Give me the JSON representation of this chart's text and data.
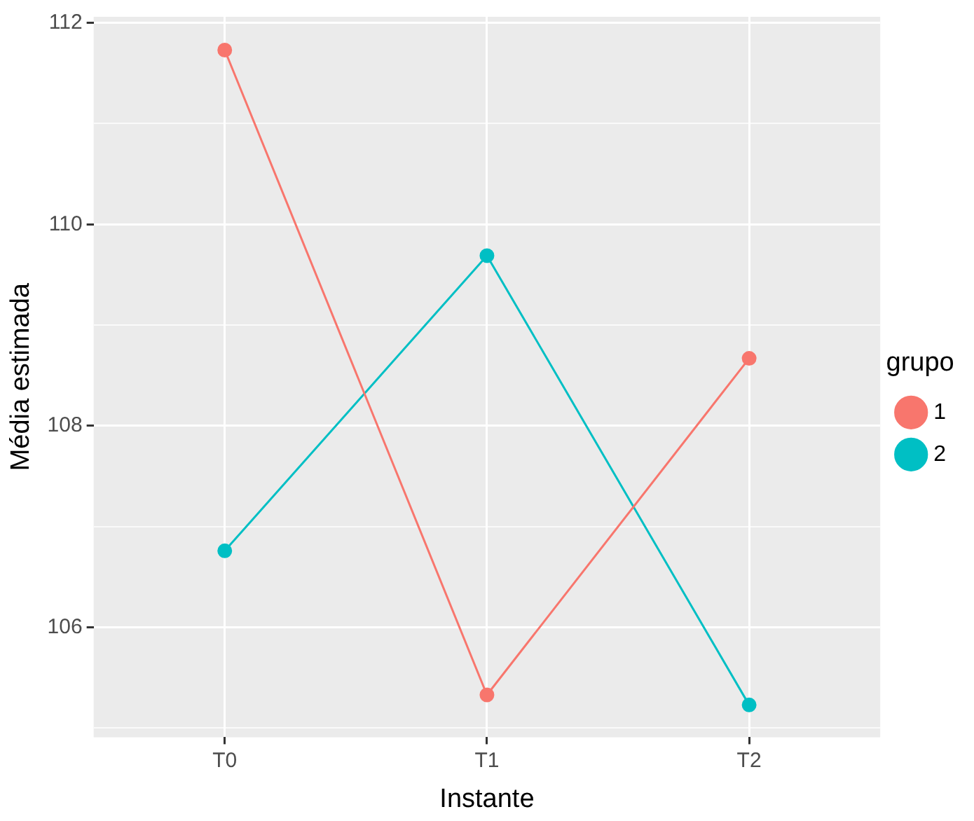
{
  "chart_data": {
    "type": "line",
    "xlabel": "Instante",
    "ylabel": "Média estimada",
    "legend_title": "grupo",
    "categories": [
      "T0",
      "T1",
      "T2"
    ],
    "series": [
      {
        "name": "1",
        "color": "#f8766d",
        "values": [
          111.73,
          105.33,
          108.67
        ]
      },
      {
        "name": "2",
        "color": "#00bfc4",
        "values": [
          106.76,
          109.69,
          105.23
        ]
      }
    ],
    "ylim": [
      104.91,
      112.06
    ],
    "yticks": [
      {
        "value": 105,
        "label": null
      },
      106,
      {
        "value": 107,
        "label": null
      },
      108,
      {
        "value": 109,
        "label": null
      },
      110,
      {
        "value": 111,
        "label": null
      },
      112
    ],
    "grid": true,
    "legend": "right",
    "marker": "circle",
    "line_style": "solid"
  }
}
